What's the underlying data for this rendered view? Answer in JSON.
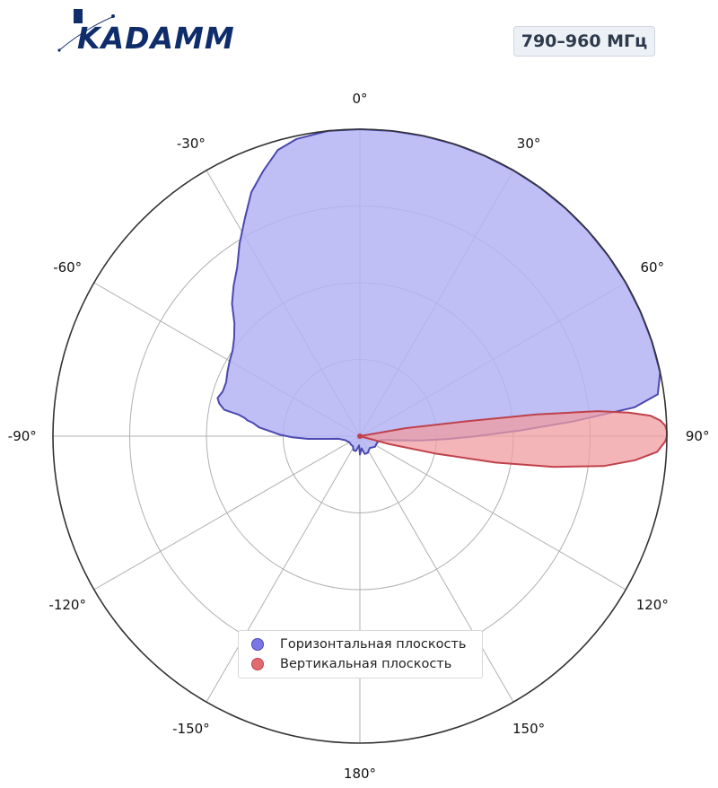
{
  "header": {
    "logo_text": "KADAMM",
    "band": "790–960 МГц"
  },
  "colors": {
    "horizontal_fill": "#b4b4f4",
    "horizontal_line": "#4b48b0",
    "vertical_fill": "#ef9ca0",
    "vertical_line": "#c0414b",
    "frame": "#333333",
    "grid": "#b0b0b0",
    "logo": "#102d6b"
  },
  "chart_data": {
    "type": "polar-area",
    "theta_direction": "clockwise",
    "theta_zero": "top",
    "theta_ticks": [
      "0°",
      "30°",
      "60°",
      "90°",
      "120°",
      "150°",
      "180°",
      "-150°",
      "-120°",
      "-90°",
      "-60°",
      "-30°"
    ],
    "theta_tick_values": [
      0,
      30,
      60,
      90,
      120,
      150,
      180,
      -150,
      -120,
      -90,
      -60,
      -30
    ],
    "r_range": [
      0,
      1
    ],
    "r_gridlines": [
      0.25,
      0.5,
      0.75
    ],
    "r_tick_labels_visible": false,
    "grid": true,
    "legend_position": "bottom-center",
    "series": [
      {
        "name": "Горизонтальная плоскость",
        "color": "#b4b4f4",
        "points": [
          [
            -135,
            0.04
          ],
          [
            -120,
            0.04
          ],
          [
            -105,
            0.05
          ],
          [
            -97,
            0.07
          ],
          [
            -95,
            0.1
          ],
          [
            -93,
            0.17
          ],
          [
            -91,
            0.22
          ],
          [
            -89,
            0.26
          ],
          [
            -87,
            0.29
          ],
          [
            -85,
            0.33
          ],
          [
            -83,
            0.35
          ],
          [
            -82,
            0.37
          ],
          [
            -81,
            0.38
          ],
          [
            -80,
            0.4
          ],
          [
            -79,
            0.45
          ],
          [
            -77,
            0.47
          ],
          [
            -75,
            0.48
          ],
          [
            -72,
            0.47
          ],
          [
            -68,
            0.47
          ],
          [
            -64,
            0.48
          ],
          [
            -60,
            0.49
          ],
          [
            -56,
            0.5
          ],
          [
            -52,
            0.52
          ],
          [
            -48,
            0.55
          ],
          [
            -44,
            0.6
          ],
          [
            -40,
            0.64
          ],
          [
            -36,
            0.68
          ],
          [
            -32,
            0.74
          ],
          [
            -28,
            0.8
          ],
          [
            -24,
            0.87
          ],
          [
            -20,
            0.92
          ],
          [
            -16,
            0.97
          ],
          [
            -12,
            0.99
          ],
          [
            -6,
            1.0
          ],
          [
            0,
            1.0
          ],
          [
            6,
            1.0
          ],
          [
            12,
            1.0
          ],
          [
            18,
            1.0
          ],
          [
            24,
            1.0
          ],
          [
            30,
            1.0
          ],
          [
            36,
            1.0
          ],
          [
            42,
            1.0
          ],
          [
            48,
            1.0
          ],
          [
            54,
            1.0
          ],
          [
            60,
            1.0
          ],
          [
            66,
            1.0
          ],
          [
            72,
            1.0
          ],
          [
            78,
            1.0
          ],
          [
            82,
            0.98
          ],
          [
            84,
            0.9
          ],
          [
            86,
            0.7
          ],
          [
            88,
            0.52
          ],
          [
            90,
            0.38
          ],
          [
            92,
            0.28
          ],
          [
            94,
            0.2
          ],
          [
            96,
            0.13
          ],
          [
            98,
            0.09
          ],
          [
            100,
            0.07
          ],
          [
            110,
            0.06
          ],
          [
            125,
            0.06
          ],
          [
            140,
            0.05
          ],
          [
            155,
            0.06
          ],
          [
            165,
            0.06
          ],
          [
            172,
            0.04
          ],
          [
            180,
            0.06
          ],
          [
            -175,
            0.03
          ],
          [
            -165,
            0.05
          ],
          [
            -155,
            0.05
          ],
          [
            -145,
            0.04
          ]
        ]
      },
      {
        "name": "Вертикальная плоскость",
        "color": "#ef9ca0",
        "points": [
          [
            80,
            0.15
          ],
          [
            82,
            0.34
          ],
          [
            83,
            0.58
          ],
          [
            84,
            0.78
          ],
          [
            85,
            0.88
          ],
          [
            86,
            0.95
          ],
          [
            87,
            0.98
          ],
          [
            88,
            0.995
          ],
          [
            89,
            1.0
          ],
          [
            90,
            1.0
          ],
          [
            91,
            0.995
          ],
          [
            93,
            0.97
          ],
          [
            95,
            0.9
          ],
          [
            97,
            0.8
          ],
          [
            99,
            0.64
          ],
          [
            101,
            0.45
          ],
          [
            103,
            0.25
          ],
          [
            105,
            0.1
          ],
          [
            106,
            0.0
          ],
          [
            90,
            0.0
          ],
          [
            80,
            0.0
          ]
        ]
      }
    ]
  }
}
